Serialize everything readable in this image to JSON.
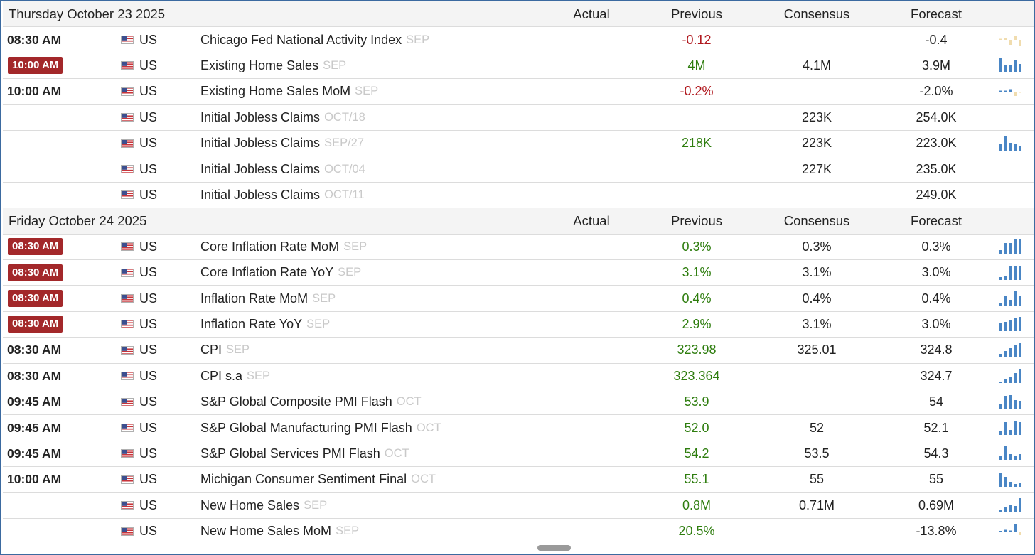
{
  "colors": {
    "frame_border": "#3b6aa0",
    "badge_bg": "#a3282a",
    "positive": "#2e7d0e",
    "negative": "#b0161c",
    "reference_text": "#c9c9c9",
    "spark_blue": "#4a86c5",
    "spark_tan": "#f0dcae"
  },
  "columns": {
    "actual": "Actual",
    "previous": "Previous",
    "consensus": "Consensus",
    "forecast": "Forecast"
  },
  "days": [
    {
      "date": "Thursday October 23 2025",
      "events": [
        {
          "time": "08:30 AM",
          "badge": false,
          "country": "US",
          "event": "Chicago Fed National Activity Index",
          "ref": "SEP",
          "actual": "",
          "previous": "-0.12",
          "previous_tone": "neg",
          "consensus": "",
          "forecast": "-0.4",
          "spark": {
            "icon": "mini-bar-chart",
            "bars": [
              0,
              0.3,
              -0.8,
              0.6,
              -0.9
            ],
            "color": "tan"
          }
        },
        {
          "time": "10:00 AM",
          "badge": true,
          "country": "US",
          "event": "Existing Home Sales",
          "ref": "SEP",
          "actual": "",
          "previous": "4M",
          "previous_tone": "pos",
          "consensus": "4.1M",
          "forecast": "3.9M",
          "spark": {
            "icon": "mini-bar-chart",
            "bars": [
              1,
              0.55,
              0.55,
              0.9,
              0.6
            ],
            "color": "blue"
          }
        },
        {
          "time": "10:00 AM",
          "badge": false,
          "country": "US",
          "event": "Existing Home Sales MoM",
          "ref": "SEP",
          "actual": "",
          "previous": "-0.2%",
          "previous_tone": "neg",
          "consensus": "",
          "forecast": "-2.0%",
          "spark": {
            "icon": "mini-bar-chart",
            "bars": [
              0.15,
              0,
              0.35,
              -0.6,
              -0.15
            ],
            "color": "mixed"
          }
        },
        {
          "time": "",
          "badge": false,
          "country": "US",
          "event": "Initial Jobless Claims",
          "ref": "OCT/18",
          "actual": "",
          "previous": "",
          "previous_tone": "",
          "consensus": "223K",
          "forecast": "254.0K",
          "spark": null
        },
        {
          "time": "",
          "badge": false,
          "country": "US",
          "event": "Initial Jobless Claims",
          "ref": "SEP/27",
          "actual": "",
          "previous": "218K",
          "previous_tone": "pos",
          "consensus": "223K",
          "forecast": "223.0K",
          "spark": {
            "icon": "mini-bar-chart",
            "bars": [
              0.45,
              1,
              0.55,
              0.45,
              0.3
            ],
            "color": "blue"
          }
        },
        {
          "time": "",
          "badge": false,
          "country": "US",
          "event": "Initial Jobless Claims",
          "ref": "OCT/04",
          "actual": "",
          "previous": "",
          "previous_tone": "",
          "consensus": "227K",
          "forecast": "235.0K",
          "spark": null
        },
        {
          "time": "",
          "badge": false,
          "country": "US",
          "event": "Initial Jobless Claims",
          "ref": "OCT/11",
          "actual": "",
          "previous": "",
          "previous_tone": "",
          "consensus": "",
          "forecast": "249.0K",
          "spark": null
        }
      ]
    },
    {
      "date": "Friday October 24 2025",
      "events": [
        {
          "time": "08:30 AM",
          "badge": true,
          "country": "US",
          "event": "Core Inflation Rate MoM",
          "ref": "SEP",
          "actual": "",
          "previous": "0.3%",
          "previous_tone": "pos",
          "consensus": "0.3%",
          "forecast": "0.3%",
          "spark": {
            "icon": "mini-bar-chart",
            "bars": [
              0.25,
              0.75,
              0.75,
              1,
              1
            ],
            "color": "blue"
          }
        },
        {
          "time": "08:30 AM",
          "badge": true,
          "country": "US",
          "event": "Core Inflation Rate YoY",
          "ref": "SEP",
          "actual": "",
          "previous": "3.1%",
          "previous_tone": "pos",
          "consensus": "3.1%",
          "forecast": "3.0%",
          "spark": {
            "icon": "mini-bar-chart",
            "bars": [
              0.2,
              0.3,
              1,
              1,
              1
            ],
            "color": "blue"
          }
        },
        {
          "time": "08:30 AM",
          "badge": true,
          "country": "US",
          "event": "Inflation Rate MoM",
          "ref": "SEP",
          "actual": "",
          "previous": "0.4%",
          "previous_tone": "pos",
          "consensus": "0.4%",
          "forecast": "0.4%",
          "spark": {
            "icon": "mini-bar-chart",
            "bars": [
              0.2,
              0.7,
              0.4,
              1,
              0.7
            ],
            "color": "blue"
          }
        },
        {
          "time": "08:30 AM",
          "badge": true,
          "country": "US",
          "event": "Inflation Rate YoY",
          "ref": "SEP",
          "actual": "",
          "previous": "2.9%",
          "previous_tone": "pos",
          "consensus": "3.1%",
          "forecast": "3.0%",
          "spark": {
            "icon": "mini-bar-chart",
            "bars": [
              0.55,
              0.65,
              0.8,
              0.95,
              1
            ],
            "color": "blue"
          }
        },
        {
          "time": "08:30 AM",
          "badge": false,
          "country": "US",
          "event": "CPI",
          "ref": "SEP",
          "actual": "",
          "previous": "323.98",
          "previous_tone": "pos",
          "consensus": "325.01",
          "forecast": "324.8",
          "spark": {
            "icon": "mini-bar-chart",
            "bars": [
              0.25,
              0.45,
              0.65,
              0.85,
              1
            ],
            "color": "blue"
          }
        },
        {
          "time": "08:30 AM",
          "badge": false,
          "country": "US",
          "event": "CPI s.a",
          "ref": "SEP",
          "actual": "",
          "previous": "323.364",
          "previous_tone": "pos",
          "consensus": "",
          "forecast": "324.7",
          "spark": {
            "icon": "mini-bar-chart",
            "bars": [
              0.1,
              0.25,
              0.45,
              0.7,
              1
            ],
            "color": "blue"
          }
        },
        {
          "time": "09:45 AM",
          "badge": false,
          "country": "US",
          "event": "S&P Global Composite PMI Flash",
          "ref": "OCT",
          "actual": "",
          "previous": "53.9",
          "previous_tone": "pos",
          "consensus": "",
          "forecast": "54",
          "spark": {
            "icon": "mini-bar-chart",
            "bars": [
              0.35,
              0.95,
              1,
              0.65,
              0.6
            ],
            "color": "blue"
          }
        },
        {
          "time": "09:45 AM",
          "badge": false,
          "country": "US",
          "event": "S&P Global Manufacturing PMI Flash",
          "ref": "OCT",
          "actual": "",
          "previous": "52.0",
          "previous_tone": "pos",
          "consensus": "52",
          "forecast": "52.1",
          "spark": {
            "icon": "mini-bar-chart",
            "bars": [
              0.3,
              0.9,
              0.35,
              1,
              0.9
            ],
            "color": "blue"
          }
        },
        {
          "time": "09:45 AM",
          "badge": false,
          "country": "US",
          "event": "S&P Global Services PMI Flash",
          "ref": "OCT",
          "actual": "",
          "previous": "54.2",
          "previous_tone": "pos",
          "consensus": "53.5",
          "forecast": "54.3",
          "spark": {
            "icon": "mini-bar-chart",
            "bars": [
              0.35,
              1,
              0.45,
              0.3,
              0.45
            ],
            "color": "blue"
          }
        },
        {
          "time": "10:00 AM",
          "badge": false,
          "country": "US",
          "event": "Michigan Consumer Sentiment Final",
          "ref": "OCT",
          "actual": "",
          "previous": "55.1",
          "previous_tone": "pos",
          "consensus": "55",
          "forecast": "55",
          "spark": {
            "icon": "mini-bar-chart",
            "bars": [
              1,
              0.7,
              0.35,
              0.2,
              0.25
            ],
            "color": "blue"
          }
        },
        {
          "time": "",
          "badge": false,
          "country": "US",
          "event": "New Home Sales",
          "ref": "SEP",
          "actual": "",
          "previous": "0.8M",
          "previous_tone": "pos",
          "consensus": "0.71M",
          "forecast": "0.69M",
          "spark": {
            "icon": "mini-bar-chart",
            "bars": [
              0.2,
              0.4,
              0.5,
              0.45,
              1
            ],
            "color": "blue"
          }
        },
        {
          "time": "",
          "badge": false,
          "country": "US",
          "event": "New Home Sales MoM",
          "ref": "SEP",
          "actual": "",
          "previous": "20.5%",
          "previous_tone": "pos",
          "consensus": "",
          "forecast": "-13.8%",
          "spark": {
            "icon": "mini-bar-chart",
            "bars": [
              0.1,
              0.25,
              0,
              1,
              -0.5
            ],
            "color": "mixed"
          }
        }
      ]
    }
  ]
}
